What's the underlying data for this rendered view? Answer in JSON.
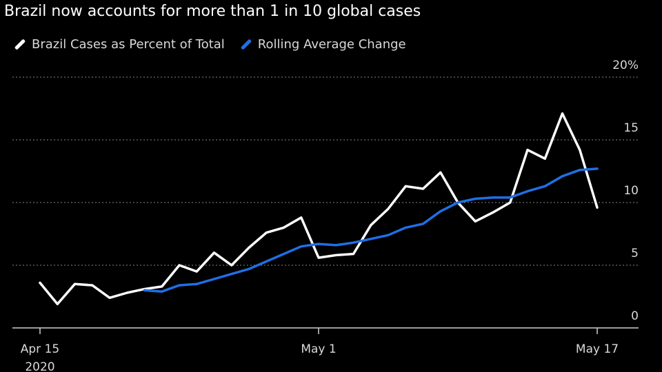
{
  "subtitle": "Brazil now accounts for more than 1 in 10 global cases",
  "colors": {
    "background": "#000000",
    "brazil_series": "#ffffff",
    "rolling_series": "#1f6fe5",
    "grid": "#8a8a8a"
  },
  "chart_data": {
    "type": "line",
    "title": "",
    "subtitle": "Brazil now accounts for more than 1 in 10 global cases",
    "xlabel": "",
    "ylabel": "",
    "ylim": [
      0,
      20
    ],
    "y_ticks": [
      "0",
      "5",
      "10",
      "15",
      "20%"
    ],
    "x_tick_labels": [
      {
        "day": 0,
        "label": "Apr 15",
        "sublabel": "2020"
      },
      {
        "day": 16,
        "label": "May 1"
      },
      {
        "day": 32,
        "label": "May 17"
      }
    ],
    "x_range": [
      0,
      32
    ],
    "grid": true,
    "legend_position": "top-left",
    "series": [
      {
        "name": "Brazil Cases as Percent of Total",
        "color": "#ffffff",
        "x": [
          0,
          1,
          2,
          3,
          4,
          5,
          6,
          7,
          8,
          9,
          10,
          11,
          12,
          13,
          14,
          15,
          16,
          17,
          18,
          19,
          20,
          21,
          22,
          23,
          24,
          25,
          26,
          27,
          28,
          29,
          30,
          31,
          32
        ],
        "y": [
          3.6,
          1.9,
          3.5,
          3.4,
          2.4,
          2.8,
          3.1,
          3.3,
          5.0,
          4.5,
          6.0,
          5.0,
          6.4,
          7.6,
          8.0,
          8.8,
          5.6,
          5.8,
          5.9,
          8.2,
          9.5,
          11.3,
          11.1,
          12.4,
          10.0,
          8.5,
          9.2,
          10.0,
          14.2,
          13.5,
          17.1,
          14.2,
          9.6
        ]
      },
      {
        "name": "Rolling Average Change",
        "color": "#1f6fe5",
        "x": [
          6,
          7,
          8,
          9,
          10,
          11,
          12,
          13,
          14,
          15,
          16,
          17,
          18,
          19,
          20,
          21,
          22,
          23,
          24,
          25,
          26,
          27,
          28,
          29,
          30,
          31,
          32
        ],
        "y": [
          3.0,
          2.9,
          3.4,
          3.5,
          3.9,
          4.3,
          4.7,
          5.3,
          5.9,
          6.5,
          6.7,
          6.6,
          6.8,
          7.1,
          7.4,
          8.0,
          8.3,
          9.3,
          10.0,
          10.3,
          10.4,
          10.4,
          10.9,
          11.3,
          12.1,
          12.6,
          12.7
        ]
      }
    ]
  }
}
